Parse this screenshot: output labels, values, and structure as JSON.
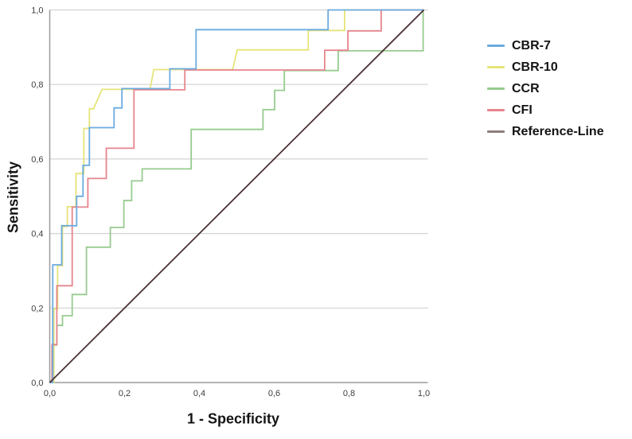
{
  "axes": {
    "x_title": "1 - Specificity",
    "y_title": "Sensitivity"
  },
  "colors": {
    "gridline": "#d3d3d3",
    "axis_line": "#9b9b9b",
    "tick_text": "#3d3d3d",
    "background": "#ffffff"
  },
  "chart_data": {
    "type": "line",
    "subtype": "roc-step-curves",
    "title": "",
    "xlabel": "1 - Specificity",
    "ylabel": "Sensitivity",
    "xlim": [
      0,
      1
    ],
    "ylim": [
      0,
      1
    ],
    "grid": "horizontal-only",
    "legend_position": "right",
    "x_tick_values": [
      0,
      0.2,
      0.4,
      0.6,
      0.8,
      1.0
    ],
    "x_tick_labels": [
      "0,0",
      "0,2",
      "0,4",
      "0,6",
      "0,8",
      "1,0"
    ],
    "y_tick_values": [
      0,
      0.2,
      0.4,
      0.6,
      0.8,
      1.0
    ],
    "y_tick_labels": [
      "0,0",
      "0,2",
      "0,4",
      "0,6",
      "0,8",
      "1,0"
    ],
    "series": [
      {
        "name": "CBR-7",
        "color": "#6babdf",
        "points": [
          [
            0,
            0
          ],
          [
            0.008,
            0
          ],
          [
            0.008,
            0.316
          ],
          [
            0.032,
            0.316
          ],
          [
            0.032,
            0.421
          ],
          [
            0.072,
            0.421
          ],
          [
            0.072,
            0.5
          ],
          [
            0.089,
            0.5
          ],
          [
            0.089,
            0.583
          ],
          [
            0.106,
            0.583
          ],
          [
            0.106,
            0.684
          ],
          [
            0.172,
            0.684
          ],
          [
            0.172,
            0.737
          ],
          [
            0.193,
            0.737
          ],
          [
            0.193,
            0.789
          ],
          [
            0.321,
            0.789
          ],
          [
            0.321,
            0.842
          ],
          [
            0.391,
            0.842
          ],
          [
            0.391,
            0.947
          ],
          [
            0.744,
            0.947
          ],
          [
            0.744,
            1
          ],
          [
            1,
            1
          ]
        ]
      },
      {
        "name": "CBR-10",
        "color": "#e6e478",
        "points": [
          [
            0,
            0
          ],
          [
            0.011,
            0
          ],
          [
            0.011,
            0.2
          ],
          [
            0.021,
            0.2
          ],
          [
            0.021,
            0.316
          ],
          [
            0.034,
            0.316
          ],
          [
            0.034,
            0.421
          ],
          [
            0.047,
            0.421
          ],
          [
            0.047,
            0.474
          ],
          [
            0.07,
            0.474
          ],
          [
            0.07,
            0.563
          ],
          [
            0.091,
            0.563
          ],
          [
            0.091,
            0.684
          ],
          [
            0.106,
            0.684
          ],
          [
            0.106,
            0.737
          ],
          [
            0.117,
            0.737
          ],
          [
            0.14,
            0.789
          ],
          [
            0.268,
            0.789
          ],
          [
            0.278,
            0.842
          ],
          [
            0.489,
            0.842
          ],
          [
            0.501,
            0.895
          ],
          [
            0.691,
            0.895
          ],
          [
            0.691,
            0.947
          ],
          [
            0.788,
            0.947
          ],
          [
            0.788,
            1
          ],
          [
            1,
            1
          ]
        ]
      },
      {
        "name": "CCR",
        "color": "#97cb8f",
        "points": [
          [
            0,
            0
          ],
          [
            0.009,
            0
          ],
          [
            0.009,
            0.105
          ],
          [
            0.019,
            0.105
          ],
          [
            0.019,
            0.158
          ],
          [
            0.034,
            0.158
          ],
          [
            0.034,
            0.184
          ],
          [
            0.06,
            0.184
          ],
          [
            0.06,
            0.241
          ],
          [
            0.098,
            0.241
          ],
          [
            0.098,
            0.368
          ],
          [
            0.162,
            0.368
          ],
          [
            0.162,
            0.421
          ],
          [
            0.198,
            0.421
          ],
          [
            0.198,
            0.493
          ],
          [
            0.219,
            0.493
          ],
          [
            0.219,
            0.546
          ],
          [
            0.247,
            0.546
          ],
          [
            0.247,
            0.578
          ],
          [
            0.378,
            0.578
          ],
          [
            0.378,
            0.684
          ],
          [
            0.57,
            0.684
          ],
          [
            0.57,
            0.737
          ],
          [
            0.601,
            0.737
          ],
          [
            0.601,
            0.789
          ],
          [
            0.627,
            0.789
          ],
          [
            0.627,
            0.842
          ],
          [
            0.771,
            0.842
          ],
          [
            0.771,
            0.895
          ],
          [
            0.998,
            0.895
          ],
          [
            0.998,
            1
          ],
          [
            1,
            1
          ]
        ]
      },
      {
        "name": "CFI",
        "color": "#e6858d",
        "points": [
          [
            0,
            0
          ],
          [
            0.006,
            0
          ],
          [
            0.006,
            0.105
          ],
          [
            0.019,
            0.105
          ],
          [
            0.019,
            0.263
          ],
          [
            0.06,
            0.263
          ],
          [
            0.06,
            0.474
          ],
          [
            0.102,
            0.474
          ],
          [
            0.102,
            0.551
          ],
          [
            0.151,
            0.551
          ],
          [
            0.151,
            0.632
          ],
          [
            0.225,
            0.632
          ],
          [
            0.225,
            0.789
          ],
          [
            0.361,
            0.789
          ],
          [
            0.361,
            0.842
          ],
          [
            0.735,
            0.842
          ],
          [
            0.735,
            0.895
          ],
          [
            0.797,
            0.895
          ],
          [
            0.797,
            0.947
          ],
          [
            0.886,
            0.947
          ],
          [
            0.886,
            1
          ],
          [
            1,
            1
          ]
        ]
      },
      {
        "name": "Reference-Line",
        "color": "#4b3136",
        "legend_color": "#907d7f",
        "points": [
          [
            0,
            0
          ],
          [
            1,
            1
          ]
        ]
      }
    ]
  }
}
